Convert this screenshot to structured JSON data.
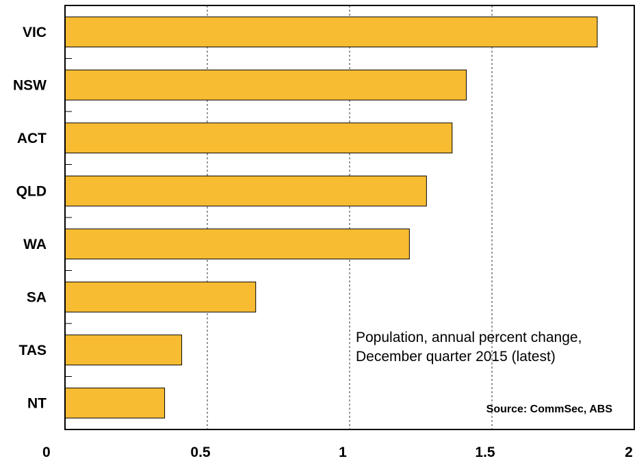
{
  "chart_data": {
    "type": "bar",
    "orientation": "horizontal",
    "categories": [
      "VIC",
      "NSW",
      "ACT",
      "QLD",
      "WA",
      "SA",
      "TAS",
      "NT"
    ],
    "values": [
      1.87,
      1.41,
      1.36,
      1.27,
      1.21,
      0.67,
      0.41,
      0.35
    ],
    "xlim": [
      0,
      2
    ],
    "xticks": [
      "0",
      "0.5",
      "1",
      "1.5",
      "2"
    ],
    "xtick_values": [
      0,
      0.5,
      1,
      1.5,
      2
    ],
    "grid": "vertical-dashed",
    "bar_color": "#F8BC32",
    "annotation": [
      "Population, annual percent change,",
      "December quarter 2015 (latest)"
    ],
    "source": "Source: CommSec, ABS"
  }
}
